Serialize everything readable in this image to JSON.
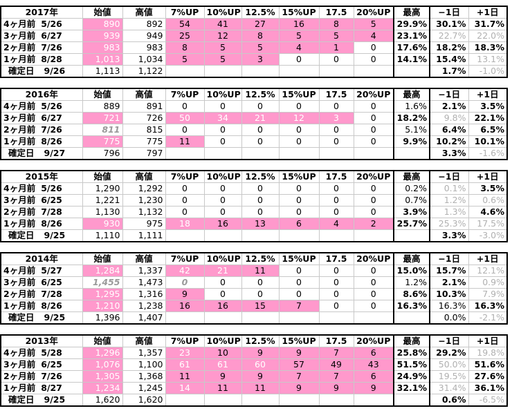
{
  "headers": [
    "始値",
    "高値",
    "7%UP",
    "10%UP",
    "12.5%",
    "15%UP",
    "17.5",
    "20%UP",
    "最高",
    "−1日",
    "+1日"
  ],
  "tables": [
    {
      "year": "2017年",
      "rows": [
        {
          "label": "4ヶ月前",
          "date": "5/26",
          "cells": [
            "890",
            "892",
            "54",
            "41",
            "27",
            "16",
            "8",
            "5",
            "29.9%",
            "30.1%",
            "31.7%"
          ]
        },
        {
          "label": "3ヶ月前",
          "date": "6/27",
          "cells": [
            "939",
            "949",
            "25",
            "12",
            "8",
            "5",
            "5",
            "4",
            "23.1%",
            "22.7%",
            "22.0%"
          ]
        },
        {
          "label": "2ヶ月前",
          "date": "7/26",
          "cells": [
            "983",
            "983",
            "8",
            "5",
            "5",
            "4",
            "1",
            "0",
            "17.6%",
            "18.2%",
            "18.3%"
          ]
        },
        {
          "label": "1ヶ月前",
          "date": "8/28",
          "cells": [
            "1,013",
            "1,034",
            "5",
            "5",
            "3",
            "0",
            "0",
            "0",
            "14.1%",
            "15.4%",
            "13.1%"
          ]
        },
        {
          "label": "確定日",
          "date": "9/26",
          "cells": [
            "1,113",
            "1,122",
            "",
            "",
            "",
            "",
            "",
            "",
            "",
            "1.7%",
            "-1.0%"
          ]
        }
      ]
    },
    {
      "year": "2016年",
      "rows": [
        {
          "label": "4ヶ月前",
          "date": "5/26",
          "cells": [
            "889",
            "891",
            "0",
            "0",
            "0",
            "0",
            "0",
            "0",
            "1.6%",
            "2.1%",
            "3.5%"
          ]
        },
        {
          "label": "3ヶ月前",
          "date": "6/27",
          "cells": [
            "721",
            "726",
            "50",
            "34",
            "21",
            "12",
            "3",
            "0",
            "18.2%",
            "9.8%",
            "22.1%"
          ]
        },
        {
          "label": "2ヶ月前",
          "date": "7/26",
          "cells": [
            "811",
            "815",
            "0",
            "0",
            "0",
            "0",
            "0",
            "0",
            "5.1%",
            "6.4%",
            "6.5%"
          ]
        },
        {
          "label": "1ヶ月前",
          "date": "8/26",
          "cells": [
            "775",
            "775",
            "11",
            "0",
            "0",
            "0",
            "0",
            "0",
            "9.9%",
            "10.2%",
            "10.1%"
          ]
        },
        {
          "label": "確定日",
          "date": "9/27",
          "cells": [
            "796",
            "797",
            "",
            "",
            "",
            "",
            "",
            "",
            "",
            "3.3%",
            "-1.6%"
          ]
        }
      ]
    },
    {
      "year": "2015年",
      "rows": [
        {
          "label": "4ヶ月前",
          "date": "5/26",
          "cells": [
            "1,290",
            "1,292",
            "0",
            "0",
            "0",
            "0",
            "0",
            "0",
            "0.2%",
            "0.1%",
            "3.5%"
          ]
        },
        {
          "label": "3ヶ月前",
          "date": "6/25",
          "cells": [
            "1,221",
            "1,230",
            "0",
            "0",
            "0",
            "0",
            "0",
            "0",
            "0.7%",
            "1.2%",
            "0.6%"
          ]
        },
        {
          "label": "2ヶ月前",
          "date": "7/28",
          "cells": [
            "1,130",
            "1,132",
            "0",
            "0",
            "0",
            "0",
            "0",
            "0",
            "3.9%",
            "1.3%",
            "4.6%"
          ]
        },
        {
          "label": "1ヶ月前",
          "date": "8/26",
          "cells": [
            "930",
            "975",
            "18",
            "16",
            "13",
            "6",
            "4",
            "2",
            "25.7%",
            "25.3%",
            "17.5%"
          ]
        },
        {
          "label": "確定日",
          "date": "9/25",
          "cells": [
            "1,110",
            "1,111",
            "",
            "",
            "",
            "",
            "",
            "",
            "",
            "3.3%",
            "-3.0%"
          ]
        }
      ]
    },
    {
      "year": "2014年",
      "rows": [
        {
          "label": "4ヶ月前",
          "date": "5/27",
          "cells": [
            "1,284",
            "1,337",
            "42",
            "21",
            "11",
            "0",
            "0",
            "0",
            "15.0%",
            "15.7%",
            "12.1%"
          ]
        },
        {
          "label": "3ヶ月前",
          "date": "6/25",
          "cells": [
            "1,455",
            "1,473",
            "0",
            "0",
            "0",
            "0",
            "0",
            "0",
            "1.2%",
            "2.1%",
            "0.9%"
          ]
        },
        {
          "label": "2ヶ月前",
          "date": "7/28",
          "cells": [
            "1,295",
            "1,316",
            "9",
            "0",
            "0",
            "0",
            "0",
            "0",
            "8.6%",
            "10.3%",
            "7.9%"
          ]
        },
        {
          "label": "1ヶ月前",
          "date": "8/26",
          "cells": [
            "1,210",
            "1,238",
            "16",
            "16",
            "15",
            "7",
            "0",
            "0",
            "16.3%",
            "16.3%",
            "16.3%"
          ]
        },
        {
          "label": "確定日",
          "date": "9/25",
          "cells": [
            "1,396",
            "1,407",
            "",
            "",
            "",
            "",
            "",
            "",
            "",
            "0.0%",
            "-2.1%"
          ]
        }
      ]
    },
    {
      "year": "2013年",
      "rows": [
        {
          "label": "4ヶ月前",
          "date": "5/28",
          "cells": [
            "1,296",
            "1,357",
            "23",
            "10",
            "9",
            "9",
            "7",
            "6",
            "25.8%",
            "29.2%",
            "19.8%"
          ]
        },
        {
          "label": "3ヶ月前",
          "date": "6/25",
          "cells": [
            "1,076",
            "1,100",
            "61",
            "61",
            "60",
            "57",
            "49",
            "43",
            "51.5%",
            "50.0%",
            "51.6%"
          ]
        },
        {
          "label": "2ヶ月前",
          "date": "7/26",
          "cells": [
            "1,305",
            "1,368",
            "11",
            "9",
            "9",
            "7",
            "7",
            "6",
            "24.9%",
            "19.5%",
            "27.6%"
          ]
        },
        {
          "label": "1ヶ月前",
          "date": "8/27",
          "cells": [
            "1,234",
            "1,245",
            "14",
            "11",
            "11",
            "9",
            "9",
            "9",
            "32.1%",
            "31.4%",
            "36.1%"
          ]
        },
        {
          "label": "確定日",
          "date": "9/25",
          "cells": [
            "1,620",
            "1,620",
            "",
            "",
            "",
            "",
            "",
            "",
            "",
            "0.6%",
            "-6.5%"
          ]
        }
      ]
    }
  ],
  "styles": {
    "pink_color": "#ff99cc",
    "style_codes": {
      "p": "pink background",
      "w": "white text",
      "g": "gray text",
      "b": "bold",
      "i": "italic gray"
    },
    "cell_styles": [
      [
        [
          "pw",
          "",
          "p",
          "p",
          "p",
          "p",
          "p",
          "p",
          "b",
          "b",
          "b"
        ],
        [
          "pw",
          "",
          "p",
          "p",
          "p",
          "p",
          "p",
          "p",
          "b",
          "g",
          "g"
        ],
        [
          "pw",
          "",
          "p",
          "p",
          "p",
          "p",
          "p",
          "",
          "b",
          "b",
          "b"
        ],
        [
          "pw",
          "",
          "p",
          "p",
          "p",
          "",
          "",
          "",
          "b",
          "b",
          "g"
        ],
        [
          "",
          "",
          "",
          "",
          "",
          "",
          "",
          "",
          "",
          "b",
          "g"
        ]
      ],
      [
        [
          "",
          "",
          "",
          "",
          "",
          "",
          "",
          "",
          "",
          "b",
          "b"
        ],
        [
          "pw",
          "",
          "pw",
          "pw",
          "pw",
          "pw",
          "pw",
          "",
          "b",
          "g",
          "b"
        ],
        [
          "i",
          "",
          "",
          "",
          "",
          "",
          "",
          "",
          "",
          "b",
          "b"
        ],
        [
          "pw",
          "",
          "p",
          "",
          "",
          "",
          "",
          "",
          "b",
          "b",
          "b"
        ],
        [
          "",
          "",
          "",
          "",
          "",
          "",
          "",
          "",
          "",
          "b",
          "g"
        ]
      ],
      [
        [
          "",
          "",
          "",
          "",
          "",
          "",
          "",
          "",
          "",
          "g",
          "b"
        ],
        [
          "",
          "",
          "",
          "",
          "",
          "",
          "",
          "",
          "",
          "g",
          "g"
        ],
        [
          "",
          "",
          "",
          "",
          "",
          "",
          "",
          "",
          "b",
          "g",
          "b"
        ],
        [
          "pw",
          "",
          "pw",
          "p",
          "p",
          "p",
          "p",
          "p",
          "b",
          "g",
          "g"
        ],
        [
          "",
          "",
          "",
          "",
          "",
          "",
          "",
          "",
          "",
          "b",
          "g"
        ]
      ],
      [
        [
          "pw",
          "",
          "pw",
          "pw",
          "p",
          "",
          "",
          "",
          "b",
          "b",
          "g"
        ],
        [
          "i",
          "",
          "i",
          "",
          "",
          "",
          "",
          "",
          "",
          "b",
          "g"
        ],
        [
          "pw",
          "",
          "p",
          "",
          "",
          "",
          "",
          "",
          "b",
          "b",
          "g"
        ],
        [
          "pw",
          "",
          "p",
          "p",
          "p",
          "p",
          "",
          "",
          "b",
          "",
          "b"
        ],
        [
          "",
          "",
          "",
          "",
          "",
          "",
          "",
          "",
          "",
          "",
          "g"
        ]
      ],
      [
        [
          "pw",
          "",
          "pw",
          "p",
          "p",
          "p",
          "p",
          "p",
          "b",
          "b",
          "g"
        ],
        [
          "pw",
          "",
          "pw",
          "pw",
          "pw",
          "p",
          "p",
          "p",
          "b",
          "g",
          "b"
        ],
        [
          "pw",
          "",
          "p",
          "p",
          "p",
          "p",
          "p",
          "p",
          "b",
          "g",
          "b"
        ],
        [
          "pw",
          "",
          "pw",
          "p",
          "p",
          "p",
          "p",
          "p",
          "b",
          "g",
          "b"
        ],
        [
          "",
          "",
          "",
          "",
          "",
          "",
          "",
          "",
          "",
          "b",
          "g"
        ]
      ]
    ]
  }
}
